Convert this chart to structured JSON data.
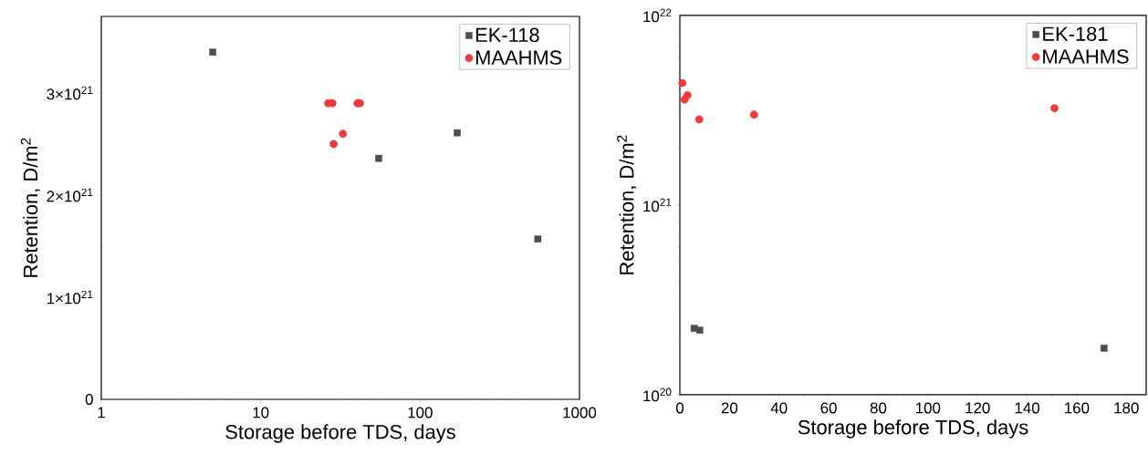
{
  "chart_data": [
    {
      "type": "scatter",
      "xlabel": "Storage before TDS, days",
      "ylabel": "Retention, D/m$^{2}$",
      "log": "x",
      "legend": "top right",
      "xlim": [
        1,
        1000
      ],
      "xticks": [
        1,
        10,
        100,
        1000
      ],
      "ylim": [
        0,
        3.75e+21
      ],
      "yticks": [
        0,
        {
          "value": 1e+21,
          "label": "1×10$^{21}$"
        },
        {
          "value": 2e+21,
          "label": "2×10$^{21}$"
        },
        {
          "value": 3e+21,
          "label": "3×10$^{21}$"
        }
      ],
      "series": [
        {
          "name": "EK-118",
          "color": "#4d4d4d",
          "marker": "square",
          "x": [
            5,
            55,
            171,
            548
          ],
          "values": [
            3.4e+21,
            2.36e+21,
            2.61e+21,
            1.57e+21
          ]
        },
        {
          "name": "MAAHMS",
          "color": "#f0393a",
          "marker": "circle",
          "x": [
            26.5,
            28.2,
            40.5,
            42,
            28.7,
            32.8
          ],
          "values": [
            2.9e+21,
            2.9e+21,
            2.9e+21,
            2.9e+21,
            2.5e+21,
            2.6e+21
          ]
        }
      ]
    },
    {
      "type": "scatter",
      "xlabel": "Storage before TDS, days",
      "ylabel": "Retention, D/m$^{2}$",
      "log": "y",
      "legend": "top right",
      "xlim": [
        0,
        188
      ],
      "xticks": [
        0,
        20,
        40,
        60,
        80,
        100,
        120,
        140,
        160,
        180
      ],
      "ylim": [
        1e+20,
        1e+22
      ],
      "yticks": [
        {
          "value": 1e+20,
          "label": "10$^{20}$"
        },
        {
          "value": 1e+21,
          "label": "10$^{21}$"
        },
        {
          "value": 1e+22,
          "label": "10$^{22}$"
        }
      ],
      "series": [
        {
          "name": "EK-181",
          "color": "#4d4d4d",
          "marker": "square",
          "x": [
            5.8,
            8.0,
            171
          ],
          "values": [
            2.24e+20,
            2.19e+20,
            1.76e+20
          ]
        },
        {
          "name": "MAAHMS",
          "color": "#f0393a",
          "marker": "circle",
          "x": [
            1.0,
            1.9,
            3.1,
            7.8,
            29.9,
            151
          ],
          "values": [
            4.4e+21,
            3.6e+21,
            3.8e+21,
            2.83e+21,
            3e+21,
            3.24e+21
          ]
        }
      ]
    }
  ]
}
